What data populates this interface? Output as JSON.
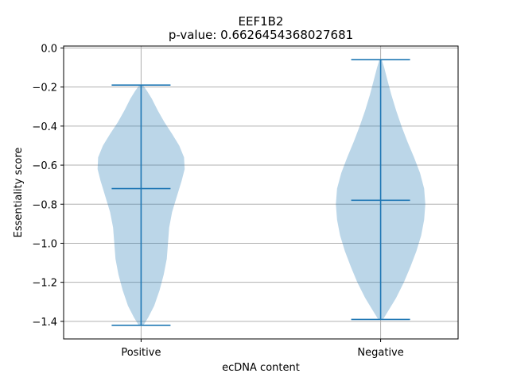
{
  "chart_data": {
    "type": "violin",
    "title": "EEF1B2",
    "subtitle": "p-value: 0.6626454368027681",
    "xlabel": "ecDNA content",
    "ylabel": "Essentiality score",
    "categories": [
      "Positive",
      "Negative"
    ],
    "ylim": [
      -1.49,
      0.01
    ],
    "yticks": [
      0.0,
      -0.2,
      -0.4,
      -0.6,
      -0.8,
      -1.0,
      -1.2,
      -1.4
    ],
    "ytick_labels": [
      "0.0",
      "−0.2",
      "−0.4",
      "−0.6",
      "−0.8",
      "−1.0",
      "−1.2",
      "−1.4"
    ],
    "grid": true,
    "violins": [
      {
        "category": "Positive",
        "min": -1.42,
        "max": -0.19,
        "median": -0.72,
        "density": [
          [
            -1.42,
            0.04
          ],
          [
            -1.38,
            0.12
          ],
          [
            -1.32,
            0.22
          ],
          [
            -1.24,
            0.31
          ],
          [
            -1.16,
            0.38
          ],
          [
            -1.08,
            0.43
          ],
          [
            -1.0,
            0.45
          ],
          [
            -0.92,
            0.47
          ],
          [
            -0.84,
            0.52
          ],
          [
            -0.76,
            0.6
          ],
          [
            -0.68,
            0.68
          ],
          [
            -0.62,
            0.73
          ],
          [
            -0.56,
            0.72
          ],
          [
            -0.5,
            0.64
          ],
          [
            -0.44,
            0.52
          ],
          [
            -0.38,
            0.39
          ],
          [
            -0.32,
            0.28
          ],
          [
            -0.26,
            0.18
          ],
          [
            -0.22,
            0.1
          ],
          [
            -0.19,
            0.03
          ]
        ]
      },
      {
        "category": "Negative",
        "min": -1.39,
        "max": -0.06,
        "median": -0.78,
        "density": [
          [
            -1.39,
            0.04
          ],
          [
            -1.34,
            0.14
          ],
          [
            -1.28,
            0.26
          ],
          [
            -1.2,
            0.39
          ],
          [
            -1.12,
            0.5
          ],
          [
            -1.04,
            0.6
          ],
          [
            -0.96,
            0.68
          ],
          [
            -0.88,
            0.73
          ],
          [
            -0.8,
            0.75
          ],
          [
            -0.72,
            0.73
          ],
          [
            -0.64,
            0.66
          ],
          [
            -0.56,
            0.56
          ],
          [
            -0.48,
            0.45
          ],
          [
            -0.4,
            0.35
          ],
          [
            -0.32,
            0.26
          ],
          [
            -0.24,
            0.18
          ],
          [
            -0.16,
            0.11
          ],
          [
            -0.1,
            0.06
          ],
          [
            -0.06,
            0.02
          ]
        ]
      }
    ],
    "colors": {
      "violin_fill": "#1f77b4",
      "line": "#1f77b4",
      "grid": "#b0b0b0",
      "axis": "#000000"
    }
  }
}
